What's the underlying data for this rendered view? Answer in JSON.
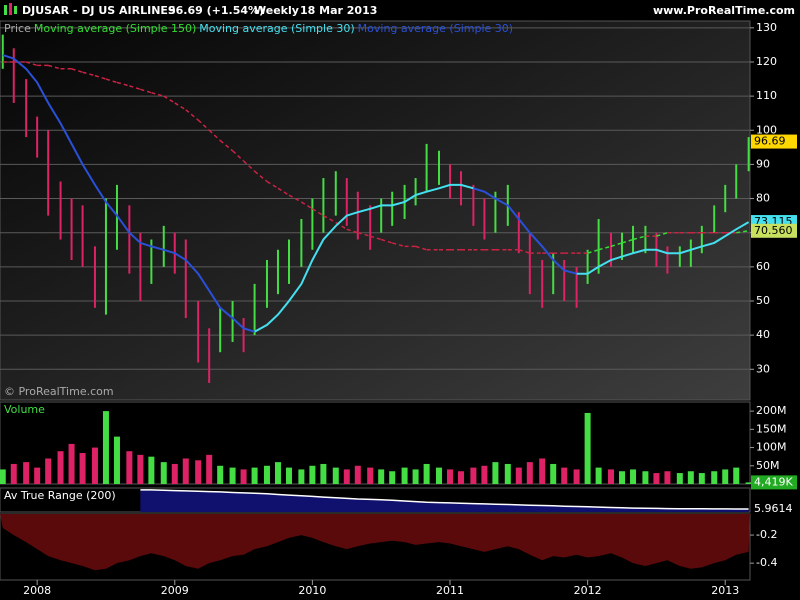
{
  "header": {
    "symbol": "DJUSAR - DJ US AIRLINES",
    "quote": "96.69 (+1.54%)",
    "period": "Weekly",
    "date": "18 Mar 2013",
    "site": "www.ProRealTime.com"
  },
  "chart_data": {
    "type": "stock",
    "x": [
      2007.75,
      2007.83,
      2007.92,
      2008,
      2008.08,
      2008.17,
      2008.25,
      2008.33,
      2008.42,
      2008.5,
      2008.58,
      2008.67,
      2008.75,
      2008.83,
      2008.92,
      2009,
      2009.08,
      2009.17,
      2009.25,
      2009.33,
      2009.42,
      2009.5,
      2009.58,
      2009.67,
      2009.75,
      2009.83,
      2009.92,
      2010,
      2010.08,
      2010.17,
      2010.25,
      2010.33,
      2010.42,
      2010.5,
      2010.58,
      2010.67,
      2010.75,
      2010.83,
      2010.92,
      2011,
      2011.08,
      2011.17,
      2011.25,
      2011.33,
      2011.42,
      2011.5,
      2011.58,
      2011.67,
      2011.75,
      2011.83,
      2011.92,
      2012,
      2012.08,
      2012.17,
      2012.25,
      2012.33,
      2012.42,
      2012.5,
      2012.58,
      2012.67,
      2012.75,
      2012.83,
      2012.92,
      2013,
      2013.08,
      2013.17
    ],
    "xlim": [
      2007.73,
      2013.18
    ],
    "xticks": [
      2008,
      2009,
      2010,
      2011,
      2012,
      2013
    ],
    "panels": [
      {
        "type": "ohlc",
        "legend_title": "Price",
        "watermark": "© ProRealTime.com",
        "grid": true,
        "ylim": [
          21,
          132
        ],
        "yticks": [
          30,
          40,
          50,
          60,
          70,
          80,
          90,
          100,
          110,
          120,
          130
        ],
        "up_color": "#44dd44",
        "down_color": "#dd2266",
        "high": [
          128,
          124,
          115,
          104,
          100,
          85,
          80,
          78,
          66,
          80,
          84,
          78,
          70,
          68,
          72,
          70,
          68,
          50,
          42,
          48,
          50,
          45,
          55,
          62,
          65,
          68,
          74,
          80,
          86,
          88,
          86,
          82,
          78,
          80,
          82,
          84,
          86,
          96,
          94,
          90,
          88,
          84,
          80,
          82,
          84,
          76,
          70,
          62,
          64,
          62,
          60,
          65,
          74,
          70,
          70,
          72,
          72,
          70,
          66,
          66,
          68,
          72,
          78,
          84,
          90,
          98
        ],
        "low": [
          118,
          108,
          98,
          92,
          75,
          68,
          62,
          60,
          48,
          46,
          65,
          58,
          50,
          55,
          60,
          58,
          45,
          32,
          26,
          35,
          38,
          35,
          40,
          48,
          52,
          55,
          60,
          65,
          70,
          75,
          72,
          68,
          65,
          70,
          72,
          74,
          78,
          82,
          84,
          80,
          78,
          72,
          68,
          70,
          72,
          64,
          52,
          48,
          52,
          50,
          48,
          55,
          58,
          60,
          62,
          64,
          64,
          60,
          58,
          60,
          60,
          64,
          70,
          76,
          80,
          88
        ],
        "series": [
          {
            "name": "Moving average (Simple 150)",
            "color": "#33dd33",
            "down_color": "#cc2244",
            "dashed": true,
            "values": [
              120,
              120,
              120,
              119,
              119,
              118,
              118,
              117,
              116,
              115,
              114,
              113,
              112,
              111,
              110,
              108,
              106,
              103,
              100,
              97,
              94,
              91,
              88,
              85,
              83,
              81,
              79,
              77,
              75,
              73,
              71,
              70,
              69,
              68,
              67,
              66,
              66,
              65,
              65,
              65,
              65,
              65,
              65,
              65,
              65,
              65,
              64,
              64,
              64,
              64,
              64,
              64,
              65,
              66,
              67,
              68,
              69,
              69,
              70,
              70,
              70,
              70,
              70,
              70,
              70,
              70.56
            ]
          },
          {
            "name": "Moving average (Simple 30)",
            "color": "#44e0f0",
            "values": [
              null,
              null,
              null,
              null,
              null,
              null,
              null,
              null,
              null,
              null,
              null,
              null,
              null,
              null,
              null,
              null,
              null,
              null,
              null,
              null,
              null,
              null,
              41,
              43,
              46,
              50,
              55,
              62,
              68,
              72,
              75,
              76,
              77,
              78,
              78,
              79,
              81,
              82,
              83,
              84,
              84,
              83,
              null,
              null,
              null,
              null,
              null,
              null,
              null,
              null,
              58,
              58,
              60,
              62,
              63,
              64,
              65,
              65,
              64,
              64,
              65,
              66,
              67,
              69,
              71,
              73.115
            ]
          },
          {
            "name": "Moving average (Simple 30)",
            "color": "#2a50d8",
            "values": [
              122,
              121,
              118,
              114,
              108,
              102,
              96,
              90,
              84,
              79,
              75,
              70,
              67,
              66,
              65,
              64,
              62,
              58,
              53,
              48,
              45,
              42,
              41,
              null,
              null,
              null,
              null,
              null,
              null,
              null,
              null,
              null,
              null,
              null,
              null,
              null,
              null,
              null,
              null,
              null,
              null,
              83,
              82,
              80,
              78,
              74,
              70,
              66,
              62,
              59,
              58,
              null,
              null,
              null,
              null,
              null,
              null,
              null,
              null,
              null,
              null,
              null,
              null,
              null,
              null,
              null
            ]
          }
        ],
        "badges": [
          {
            "value": 96.69,
            "color": "#ffd700",
            "text_color": "#000"
          },
          {
            "value": 73.115,
            "color": "#44e0f0",
            "text_color": "#000"
          },
          {
            "value": 70.56,
            "label": "70.560",
            "color": "#c8e060",
            "text_color": "#000"
          }
        ]
      },
      {
        "type": "bar",
        "label": "Volume",
        "label_color": "#44dd44",
        "ylim": [
          0,
          225000000
        ],
        "yticks": [
          {
            "value": 50000000,
            "label": "50M"
          },
          {
            "value": 100000000,
            "label": "100M"
          },
          {
            "value": 150000000,
            "label": "150M"
          },
          {
            "value": 200000000,
            "label": "200M"
          }
        ],
        "values": [
          40000000,
          55000000,
          60000000,
          45000000,
          70000000,
          90000000,
          110000000,
          85000000,
          100000000,
          200000000,
          130000000,
          90000000,
          80000000,
          75000000,
          60000000,
          55000000,
          70000000,
          65000000,
          80000000,
          50000000,
          45000000,
          40000000,
          45000000,
          50000000,
          60000000,
          45000000,
          40000000,
          50000000,
          55000000,
          45000000,
          40000000,
          50000000,
          45000000,
          40000000,
          35000000,
          45000000,
          40000000,
          55000000,
          45000000,
          40000000,
          35000000,
          45000000,
          50000000,
          60000000,
          55000000,
          45000000,
          60000000,
          70000000,
          55000000,
          45000000,
          40000000,
          195000000,
          45000000,
          40000000,
          35000000,
          40000000,
          35000000,
          30000000,
          35000000,
          30000000,
          35000000,
          30000000,
          35000000,
          40000000,
          45000000,
          4419000
        ],
        "badges": [
          {
            "value": 4419000,
            "label": "4,419K",
            "color": "#22aa22",
            "text_color": "#fff"
          }
        ]
      },
      {
        "type": "area",
        "label": "Av True Range (200)",
        "label_color": "#ffffff",
        "color": "#10106e",
        "line_color": "#ffffff",
        "ylim": [
          5.5,
          9.2
        ],
        "values": [
          null,
          null,
          null,
          null,
          null,
          null,
          null,
          null,
          null,
          null,
          null,
          null,
          8.9,
          8.9,
          8.85,
          8.8,
          8.75,
          8.7,
          8.65,
          8.6,
          8.5,
          8.45,
          8.4,
          8.3,
          8.2,
          8.1,
          8,
          7.9,
          7.8,
          7.7,
          7.6,
          7.5,
          7.45,
          7.4,
          7.3,
          7.2,
          7.1,
          7,
          6.95,
          6.9,
          6.85,
          6.8,
          6.75,
          6.7,
          6.65,
          6.6,
          6.55,
          6.5,
          6.45,
          6.4,
          6.35,
          6.3,
          6.25,
          6.2,
          6.15,
          6.1,
          6.08,
          6.05,
          6.03,
          6.01,
          6,
          5.99,
          5.98,
          5.975,
          5.97,
          5.9614
        ],
        "badges": [
          {
            "value": 5.9614,
            "color": "#000",
            "text_color": "#fff"
          }
        ]
      },
      {
        "type": "area_down",
        "color": "#5a0a0a",
        "ylim": [
          -0.52,
          -0.05
        ],
        "yticks": [
          -0.4,
          -0.2
        ],
        "values": [
          -0.15,
          -0.2,
          -0.25,
          -0.3,
          -0.35,
          -0.38,
          -0.4,
          -0.42,
          -0.45,
          -0.44,
          -0.4,
          -0.38,
          -0.35,
          -0.33,
          -0.35,
          -0.38,
          -0.42,
          -0.44,
          -0.4,
          -0.38,
          -0.35,
          -0.34,
          -0.3,
          -0.28,
          -0.25,
          -0.22,
          -0.2,
          -0.22,
          -0.25,
          -0.28,
          -0.3,
          -0.28,
          -0.26,
          -0.25,
          -0.24,
          -0.25,
          -0.27,
          -0.26,
          -0.25,
          -0.26,
          -0.28,
          -0.3,
          -0.32,
          -0.3,
          -0.28,
          -0.3,
          -0.34,
          -0.38,
          -0.35,
          -0.36,
          -0.34,
          -0.36,
          -0.35,
          -0.33,
          -0.36,
          -0.4,
          -0.42,
          -0.4,
          -0.38,
          -0.42,
          -0.44,
          -0.43,
          -0.4,
          -0.38,
          -0.34,
          -0.32
        ]
      }
    ]
  }
}
